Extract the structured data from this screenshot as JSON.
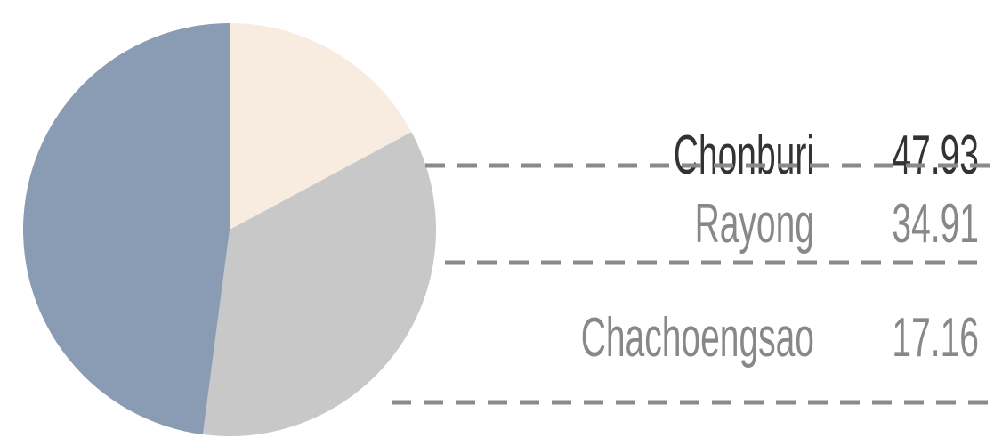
{
  "chart_data": {
    "type": "pie",
    "categories": [
      "Chachoengsao",
      "Rayong",
      "Chonburi"
    ],
    "values": [
      17.16,
      34.91,
      47.93
    ],
    "colors": [
      "#f8ebdf",
      "#c8c8c8",
      "#8a9bb4"
    ],
    "label_colors": [
      "#888888",
      "#888888",
      "#333333"
    ]
  }
}
